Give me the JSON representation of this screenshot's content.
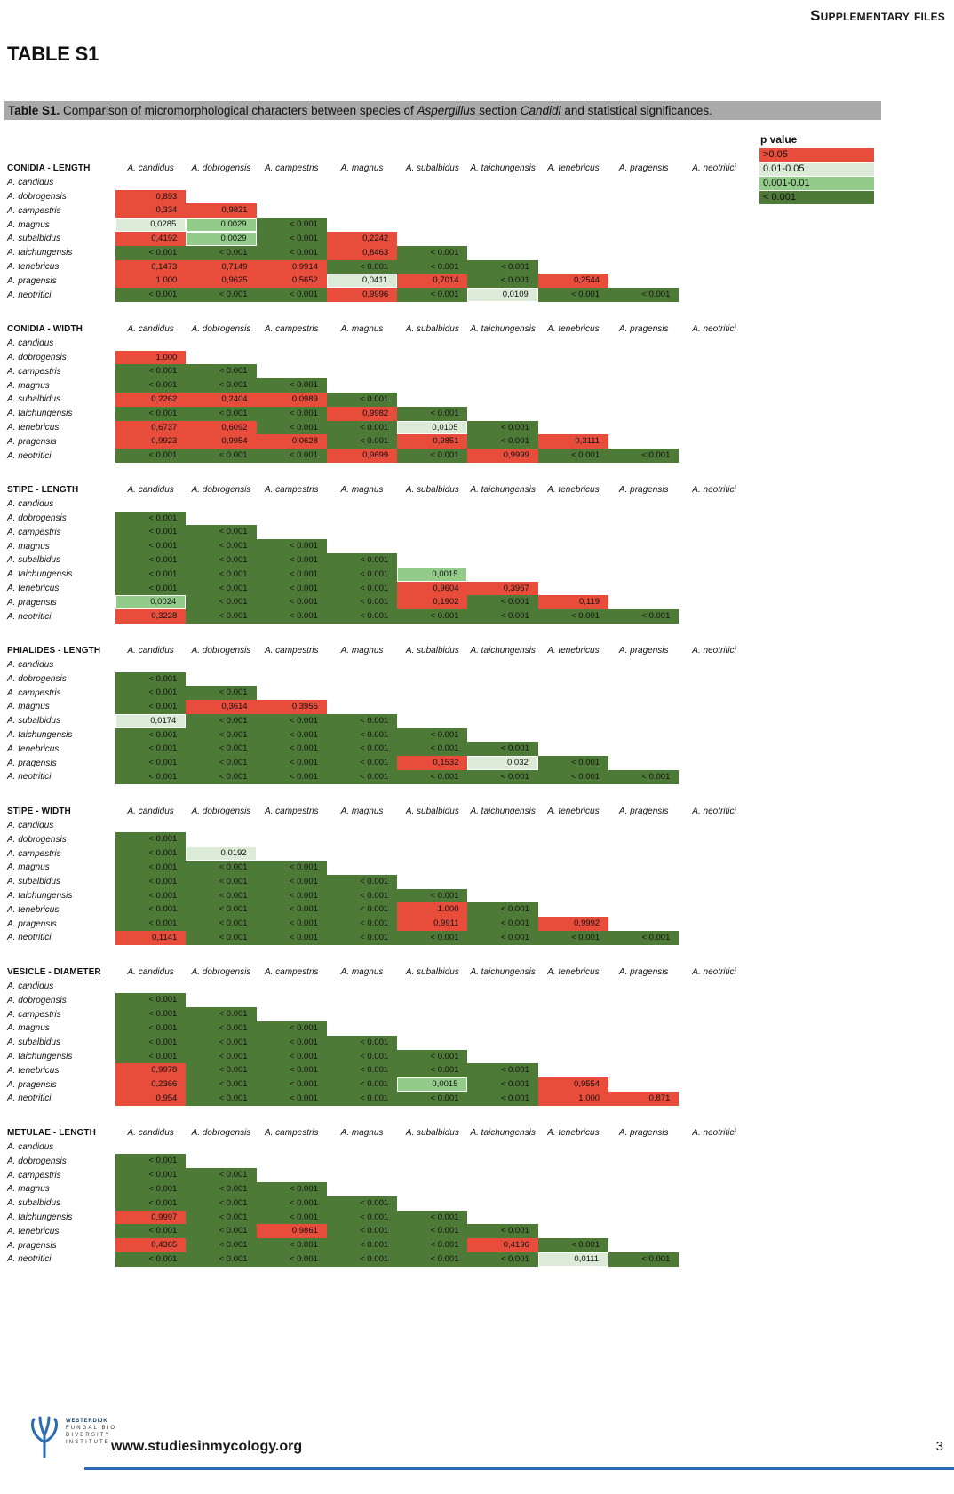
{
  "page": {
    "corner_header": "Supplementary files",
    "title": "TABLE S1",
    "caption_segments": [
      {
        "t": "Table S1.",
        "b": true
      },
      {
        "t": " Comparison of micromorphological characters between species of "
      },
      {
        "t": "Aspergillus",
        "i": true
      },
      {
        "t": " section "
      },
      {
        "t": "Candidi",
        "i": true
      },
      {
        "t": " and statistical significances."
      }
    ],
    "footer_url": "www.studiesinmycology.org",
    "page_number": "3",
    "logo_lines": [
      "WESTERDIJK",
      "FUNGAL BIO",
      "DIVERSITY",
      "INSTITUTE"
    ],
    "logo_color": "#2a6db5"
  },
  "legend": {
    "title": "p value",
    "colors": {
      "r": "#E84C3B",
      "lg": "#DCEBD8",
      "mg": "#93CB8B",
      "dg": "#4E7A38"
    },
    "items": [
      {
        "label": ">0.05",
        "cls": "r"
      },
      {
        "label": "0.01-0.05",
        "cls": "lg"
      },
      {
        "label": "0.001-0.01",
        "cls": "mg"
      },
      {
        "label": "< 0.001",
        "cls": "dg"
      }
    ]
  },
  "species": [
    "A. candidus",
    "A. dobrogensis",
    "A. campestris",
    "A. magnus",
    "A. subalbidus",
    "A. taichungensis",
    "A. tenebricus",
    "A. pragensis",
    "A. neotritici"
  ],
  "matrices": [
    {
      "title": "CONIDIA - LENGTH",
      "rows": [
        [],
        [
          [
            "0,893",
            "r"
          ]
        ],
        [
          [
            "0,334",
            "r"
          ],
          [
            "0,9821",
            "r"
          ]
        ],
        [
          [
            "0,0285",
            "lg"
          ],
          [
            "0.0029",
            "mg"
          ],
          [
            "< 0.001",
            "dg"
          ]
        ],
        [
          [
            "0,4192",
            "r"
          ],
          [
            "0,0029",
            "mg"
          ],
          [
            "< 0.001",
            "dg"
          ],
          [
            "0,2242",
            "r"
          ]
        ],
        [
          [
            "< 0.001",
            "dg"
          ],
          [
            "< 0.001",
            "dg"
          ],
          [
            "< 0.001",
            "dg"
          ],
          [
            "0,8463",
            "r"
          ],
          [
            "< 0.001",
            "dg"
          ]
        ],
        [
          [
            "0,1473",
            "r"
          ],
          [
            "0,7149",
            "r"
          ],
          [
            "0,9914",
            "r"
          ],
          [
            "< 0.001",
            "dg"
          ],
          [
            "< 0.001",
            "dg"
          ],
          [
            "< 0.001",
            "dg"
          ]
        ],
        [
          [
            "1.000",
            "r"
          ],
          [
            "0,9625",
            "r"
          ],
          [
            "0,5652",
            "r"
          ],
          [
            "0,0411",
            "lg"
          ],
          [
            "0,7014",
            "r"
          ],
          [
            "< 0.001",
            "dg"
          ],
          [
            "0,2544",
            "r"
          ]
        ],
        [
          [
            "< 0.001",
            "dg"
          ],
          [
            "< 0.001",
            "dg"
          ],
          [
            "< 0.001",
            "dg"
          ],
          [
            "0,9996",
            "r"
          ],
          [
            "< 0.001",
            "dg"
          ],
          [
            "0,0109",
            "lg"
          ],
          [
            "< 0.001",
            "dg"
          ],
          [
            "< 0.001",
            "dg"
          ]
        ]
      ]
    },
    {
      "title": "CONIDIA - WIDTH",
      "rows": [
        [],
        [
          [
            "1.000",
            "r"
          ]
        ],
        [
          [
            "< 0.001",
            "dg"
          ],
          [
            "< 0.001",
            "dg"
          ]
        ],
        [
          [
            "< 0.001",
            "dg"
          ],
          [
            "< 0.001",
            "dg"
          ],
          [
            "< 0.001",
            "dg"
          ]
        ],
        [
          [
            "0,2262",
            "r"
          ],
          [
            "0,2404",
            "r"
          ],
          [
            "0,0989",
            "r"
          ],
          [
            "< 0.001",
            "dg"
          ]
        ],
        [
          [
            "< 0.001",
            "dg"
          ],
          [
            "< 0.001",
            "dg"
          ],
          [
            "< 0.001",
            "dg"
          ],
          [
            "0,9982",
            "r"
          ],
          [
            "< 0.001",
            "dg"
          ]
        ],
        [
          [
            "0,6737",
            "r"
          ],
          [
            "0,6092",
            "r"
          ],
          [
            "< 0.001",
            "dg"
          ],
          [
            "< 0.001",
            "dg"
          ],
          [
            "0,0105",
            "lg"
          ],
          [
            "< 0.001",
            "dg"
          ]
        ],
        [
          [
            "0,9923",
            "r"
          ],
          [
            "0,9954",
            "r"
          ],
          [
            "0,0628",
            "r"
          ],
          [
            "< 0.001",
            "dg"
          ],
          [
            "0,9851",
            "r"
          ],
          [
            "< 0.001",
            "dg"
          ],
          [
            "0,3111",
            "r"
          ]
        ],
        [
          [
            "< 0.001",
            "dg"
          ],
          [
            "< 0.001",
            "dg"
          ],
          [
            "< 0.001",
            "dg"
          ],
          [
            "0,9699",
            "r"
          ],
          [
            "< 0.001",
            "dg"
          ],
          [
            "0,9999",
            "r"
          ],
          [
            "< 0.001",
            "dg"
          ],
          [
            "< 0.001",
            "dg"
          ]
        ]
      ]
    },
    {
      "title": "STIPE - LENGTH",
      "rows": [
        [],
        [
          [
            "< 0.001",
            "dg"
          ]
        ],
        [
          [
            "< 0.001",
            "dg"
          ],
          [
            "< 0.001",
            "dg"
          ]
        ],
        [
          [
            "< 0.001",
            "dg"
          ],
          [
            "< 0.001",
            "dg"
          ],
          [
            "< 0.001",
            "dg"
          ]
        ],
        [
          [
            "< 0.001",
            "dg"
          ],
          [
            "< 0.001",
            "dg"
          ],
          [
            "< 0.001",
            "dg"
          ],
          [
            "< 0.001",
            "dg"
          ]
        ],
        [
          [
            "< 0.001",
            "dg"
          ],
          [
            "< 0.001",
            "dg"
          ],
          [
            "< 0.001",
            "dg"
          ],
          [
            "< 0.001",
            "dg"
          ],
          [
            "0,0015",
            "mg"
          ]
        ],
        [
          [
            "< 0.001",
            "dg"
          ],
          [
            "< 0.001",
            "dg"
          ],
          [
            "< 0.001",
            "dg"
          ],
          [
            "< 0.001",
            "dg"
          ],
          [
            "0,9604",
            "r"
          ],
          [
            "0,3967",
            "r"
          ]
        ],
        [
          [
            "0,0024",
            "mg"
          ],
          [
            "< 0.001",
            "dg"
          ],
          [
            "< 0.001",
            "dg"
          ],
          [
            "< 0.001",
            "dg"
          ],
          [
            "0,1902",
            "r"
          ],
          [
            "< 0.001",
            "dg"
          ],
          [
            "0,119",
            "r"
          ]
        ],
        [
          [
            "0,3228",
            "r"
          ],
          [
            "< 0.001",
            "dg"
          ],
          [
            "< 0.001",
            "dg"
          ],
          [
            "< 0.001",
            "dg"
          ],
          [
            "< 0.001",
            "dg"
          ],
          [
            "< 0.001",
            "dg"
          ],
          [
            "< 0.001",
            "dg"
          ],
          [
            "< 0.001",
            "dg"
          ]
        ]
      ]
    },
    {
      "title": "PHIALIDES - LENGTH",
      "rows": [
        [],
        [
          [
            "< 0.001",
            "dg"
          ]
        ],
        [
          [
            "< 0.001",
            "dg"
          ],
          [
            "< 0.001",
            "dg"
          ]
        ],
        [
          [
            "< 0.001",
            "dg"
          ],
          [
            "0,3614",
            "r"
          ],
          [
            "0,3955",
            "r"
          ]
        ],
        [
          [
            "0,0174",
            "lg"
          ],
          [
            "< 0.001",
            "dg"
          ],
          [
            "< 0.001",
            "dg"
          ],
          [
            "< 0.001",
            "dg"
          ]
        ],
        [
          [
            "< 0.001",
            "dg"
          ],
          [
            "< 0.001",
            "dg"
          ],
          [
            "< 0.001",
            "dg"
          ],
          [
            "< 0.001",
            "dg"
          ],
          [
            "< 0.001",
            "dg"
          ]
        ],
        [
          [
            "< 0.001",
            "dg"
          ],
          [
            "< 0.001",
            "dg"
          ],
          [
            "< 0.001",
            "dg"
          ],
          [
            "< 0.001",
            "dg"
          ],
          [
            "< 0.001",
            "dg"
          ],
          [
            "< 0.001",
            "dg"
          ]
        ],
        [
          [
            "< 0.001",
            "dg"
          ],
          [
            "< 0.001",
            "dg"
          ],
          [
            "< 0.001",
            "dg"
          ],
          [
            "< 0.001",
            "dg"
          ],
          [
            "0,1532",
            "r"
          ],
          [
            "0,032",
            "lg"
          ],
          [
            "< 0.001",
            "dg"
          ]
        ],
        [
          [
            "< 0.001",
            "dg"
          ],
          [
            "< 0.001",
            "dg"
          ],
          [
            "< 0.001",
            "dg"
          ],
          [
            "< 0.001",
            "dg"
          ],
          [
            "< 0.001",
            "dg"
          ],
          [
            "< 0.001",
            "dg"
          ],
          [
            "< 0.001",
            "dg"
          ],
          [
            "< 0.001",
            "dg"
          ]
        ]
      ]
    },
    {
      "title": "STIPE - WIDTH",
      "rows": [
        [],
        [
          [
            "< 0.001",
            "dg"
          ]
        ],
        [
          [
            "< 0.001",
            "dg"
          ],
          [
            "0,0192",
            "lg"
          ]
        ],
        [
          [
            "< 0.001",
            "dg"
          ],
          [
            "< 0.001",
            "dg"
          ],
          [
            "< 0.001",
            "dg"
          ]
        ],
        [
          [
            "< 0.001",
            "dg"
          ],
          [
            "< 0.001",
            "dg"
          ],
          [
            "< 0.001",
            "dg"
          ],
          [
            "< 0.001",
            "dg"
          ]
        ],
        [
          [
            "< 0.001",
            "dg"
          ],
          [
            "< 0.001",
            "dg"
          ],
          [
            "< 0.001",
            "dg"
          ],
          [
            "< 0.001",
            "dg"
          ],
          [
            "< 0.001",
            "dg"
          ]
        ],
        [
          [
            "< 0.001",
            "dg"
          ],
          [
            "< 0.001",
            "dg"
          ],
          [
            "< 0.001",
            "dg"
          ],
          [
            "< 0.001",
            "dg"
          ],
          [
            "1.000",
            "r"
          ],
          [
            "< 0.001",
            "dg"
          ]
        ],
        [
          [
            "< 0.001",
            "dg"
          ],
          [
            "< 0.001",
            "dg"
          ],
          [
            "< 0.001",
            "dg"
          ],
          [
            "< 0.001",
            "dg"
          ],
          [
            "0,9911",
            "r"
          ],
          [
            "< 0.001",
            "dg"
          ],
          [
            "0,9992",
            "r"
          ]
        ],
        [
          [
            "0,1141",
            "r"
          ],
          [
            "< 0.001",
            "dg"
          ],
          [
            "< 0.001",
            "dg"
          ],
          [
            "< 0.001",
            "dg"
          ],
          [
            "< 0.001",
            "dg"
          ],
          [
            "< 0.001",
            "dg"
          ],
          [
            "< 0.001",
            "dg"
          ],
          [
            "< 0.001",
            "dg"
          ]
        ]
      ]
    },
    {
      "title": "VESICLE - DIAMETER",
      "rows": [
        [],
        [
          [
            "< 0.001",
            "dg"
          ]
        ],
        [
          [
            "< 0.001",
            "dg"
          ],
          [
            "< 0.001",
            "dg"
          ]
        ],
        [
          [
            "< 0.001",
            "dg"
          ],
          [
            "< 0.001",
            "dg"
          ],
          [
            "< 0.001",
            "dg"
          ]
        ],
        [
          [
            "< 0.001",
            "dg"
          ],
          [
            "< 0.001",
            "dg"
          ],
          [
            "< 0.001",
            "dg"
          ],
          [
            "< 0.001",
            "dg"
          ]
        ],
        [
          [
            "< 0.001",
            "dg"
          ],
          [
            "< 0.001",
            "dg"
          ],
          [
            "< 0.001",
            "dg"
          ],
          [
            "< 0.001",
            "dg"
          ],
          [
            "< 0.001",
            "dg"
          ]
        ],
        [
          [
            "0,9978",
            "r"
          ],
          [
            "< 0.001",
            "dg"
          ],
          [
            "< 0.001",
            "dg"
          ],
          [
            "< 0.001",
            "dg"
          ],
          [
            "< 0.001",
            "dg"
          ],
          [
            "< 0.001",
            "dg"
          ]
        ],
        [
          [
            "0,2366",
            "r"
          ],
          [
            "< 0.001",
            "dg"
          ],
          [
            "< 0.001",
            "dg"
          ],
          [
            "< 0.001",
            "dg"
          ],
          [
            "0,0015",
            "mg"
          ],
          [
            "< 0.001",
            "dg"
          ],
          [
            "0,9554",
            "r"
          ]
        ],
        [
          [
            "0,954",
            "r"
          ],
          [
            "< 0.001",
            "dg"
          ],
          [
            "< 0.001",
            "dg"
          ],
          [
            "< 0.001",
            "dg"
          ],
          [
            "< 0.001",
            "dg"
          ],
          [
            "< 0.001",
            "dg"
          ],
          [
            "1.000",
            "r"
          ],
          [
            "0,871",
            "r"
          ]
        ]
      ]
    },
    {
      "title": "METULAE - LENGTH",
      "rows": [
        [],
        [
          [
            "< 0.001",
            "dg"
          ]
        ],
        [
          [
            "< 0.001",
            "dg"
          ],
          [
            "< 0.001",
            "dg"
          ]
        ],
        [
          [
            "< 0.001",
            "dg"
          ],
          [
            "< 0.001",
            "dg"
          ],
          [
            "< 0.001",
            "dg"
          ]
        ],
        [
          [
            "< 0.001",
            "dg"
          ],
          [
            "< 0.001",
            "dg"
          ],
          [
            "< 0.001",
            "dg"
          ],
          [
            "< 0.001",
            "dg"
          ]
        ],
        [
          [
            "0,9997",
            "r"
          ],
          [
            "< 0.001",
            "dg"
          ],
          [
            "< 0.001",
            "dg"
          ],
          [
            "< 0.001",
            "dg"
          ],
          [
            "< 0.001",
            "dg"
          ]
        ],
        [
          [
            "< 0.001",
            "dg"
          ],
          [
            "< 0.001",
            "dg"
          ],
          [
            "0,9861",
            "r"
          ],
          [
            "< 0.001",
            "dg"
          ],
          [
            "< 0.001",
            "dg"
          ],
          [
            "< 0.001",
            "dg"
          ]
        ],
        [
          [
            "0,4365",
            "r"
          ],
          [
            "< 0.001",
            "dg"
          ],
          [
            "< 0.001",
            "dg"
          ],
          [
            "< 0.001",
            "dg"
          ],
          [
            "< 0.001",
            "dg"
          ],
          [
            "0,4196",
            "r"
          ],
          [
            "< 0.001",
            "dg"
          ]
        ],
        [
          [
            "< 0.001",
            "dg"
          ],
          [
            "< 0.001",
            "dg"
          ],
          [
            "< 0.001",
            "dg"
          ],
          [
            "< 0.001",
            "dg"
          ],
          [
            "< 0.001",
            "dg"
          ],
          [
            "< 0.001",
            "dg"
          ],
          [
            "0,0111",
            "lg"
          ],
          [
            "< 0.001",
            "dg"
          ]
        ]
      ]
    }
  ]
}
